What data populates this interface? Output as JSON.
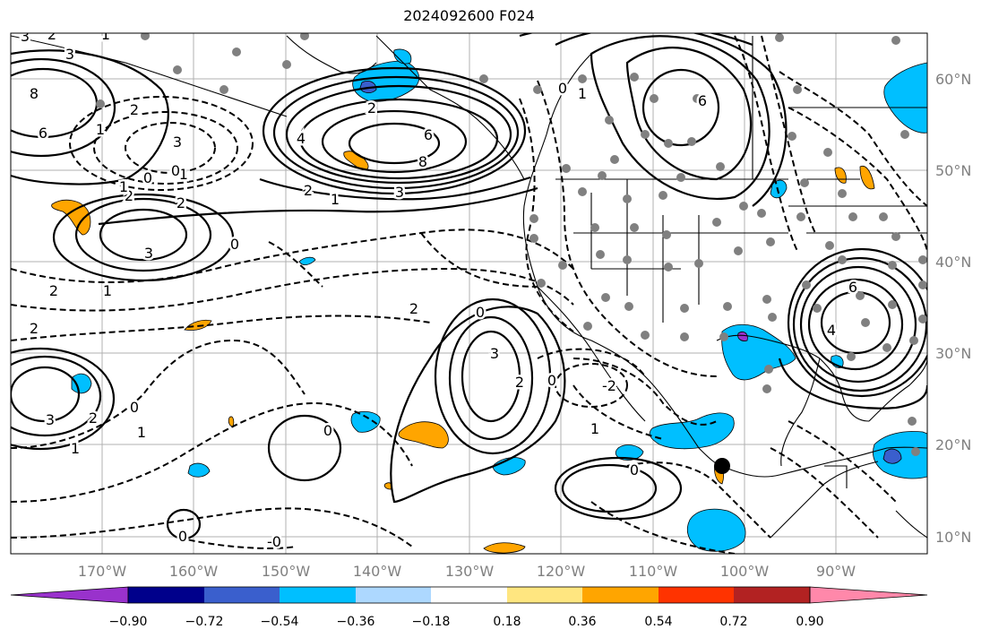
{
  "title": "2024092600 F024",
  "lat_labels": [
    "60°N",
    "50°N",
    "40°N",
    "30°N",
    "20°N",
    "10°N"
  ],
  "lon_labels": [
    "170°W",
    "160°W",
    "150°W",
    "140°W",
    "130°W",
    "120°W",
    "110°W",
    "100°W",
    "90°W"
  ],
  "colorbar": {
    "ticks": [
      "−0.90",
      "−0.72",
      "−0.54",
      "−0.36",
      "−0.18",
      "0.18",
      "0.36",
      "0.54",
      "0.72",
      "0.90"
    ],
    "colors": [
      "#9932cc",
      "#00008b",
      "#3a5fcd",
      "#00bfff",
      "#add8ff",
      "#ffffff",
      "#ffe680",
      "#ffa500",
      "#ff3300",
      "#b22222",
      "#ff88aa"
    ]
  },
  "contour_labels": [
    "8",
    "6",
    "3",
    "2",
    "1",
    "0",
    "-1",
    "3",
    "2",
    "1",
    "3",
    "4",
    "6",
    "8",
    "2",
    "3",
    "2",
    "1",
    "0",
    "3",
    "2",
    "2",
    "3",
    "2",
    "1",
    "0",
    "1",
    "2",
    "2",
    "0",
    "1",
    "1",
    "0",
    "-2",
    "2",
    "3",
    "0",
    "2",
    "0",
    "4",
    "6",
    "6",
    "0",
    "1",
    "1",
    "0",
    "0",
    "-0"
  ],
  "fill_colors": {
    "orange": "#ffa500",
    "deep_blue": "#00bfff",
    "mid_blue": "#3a5fcd",
    "purple": "#9932cc"
  }
}
